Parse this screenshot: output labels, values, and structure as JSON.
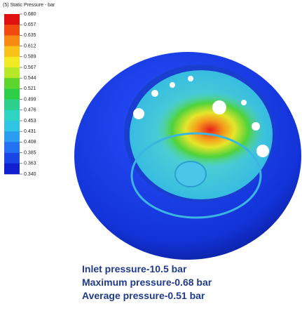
{
  "legend": {
    "title": "(5) Static Pressure - bar",
    "labels": [
      "0.680",
      "0.657",
      "0.635",
      "0.612",
      "0.589",
      "0.567",
      "0.544",
      "0.521",
      "0.499",
      "0.476",
      "0.453",
      "0.431",
      "0.408",
      "0.385",
      "0.363",
      "0.340"
    ]
  },
  "captions": [
    "Inlet pressure-10.5 bar",
    "Maximum pressure-0.68 bar",
    "Average pressure-0.51 bar"
  ]
}
